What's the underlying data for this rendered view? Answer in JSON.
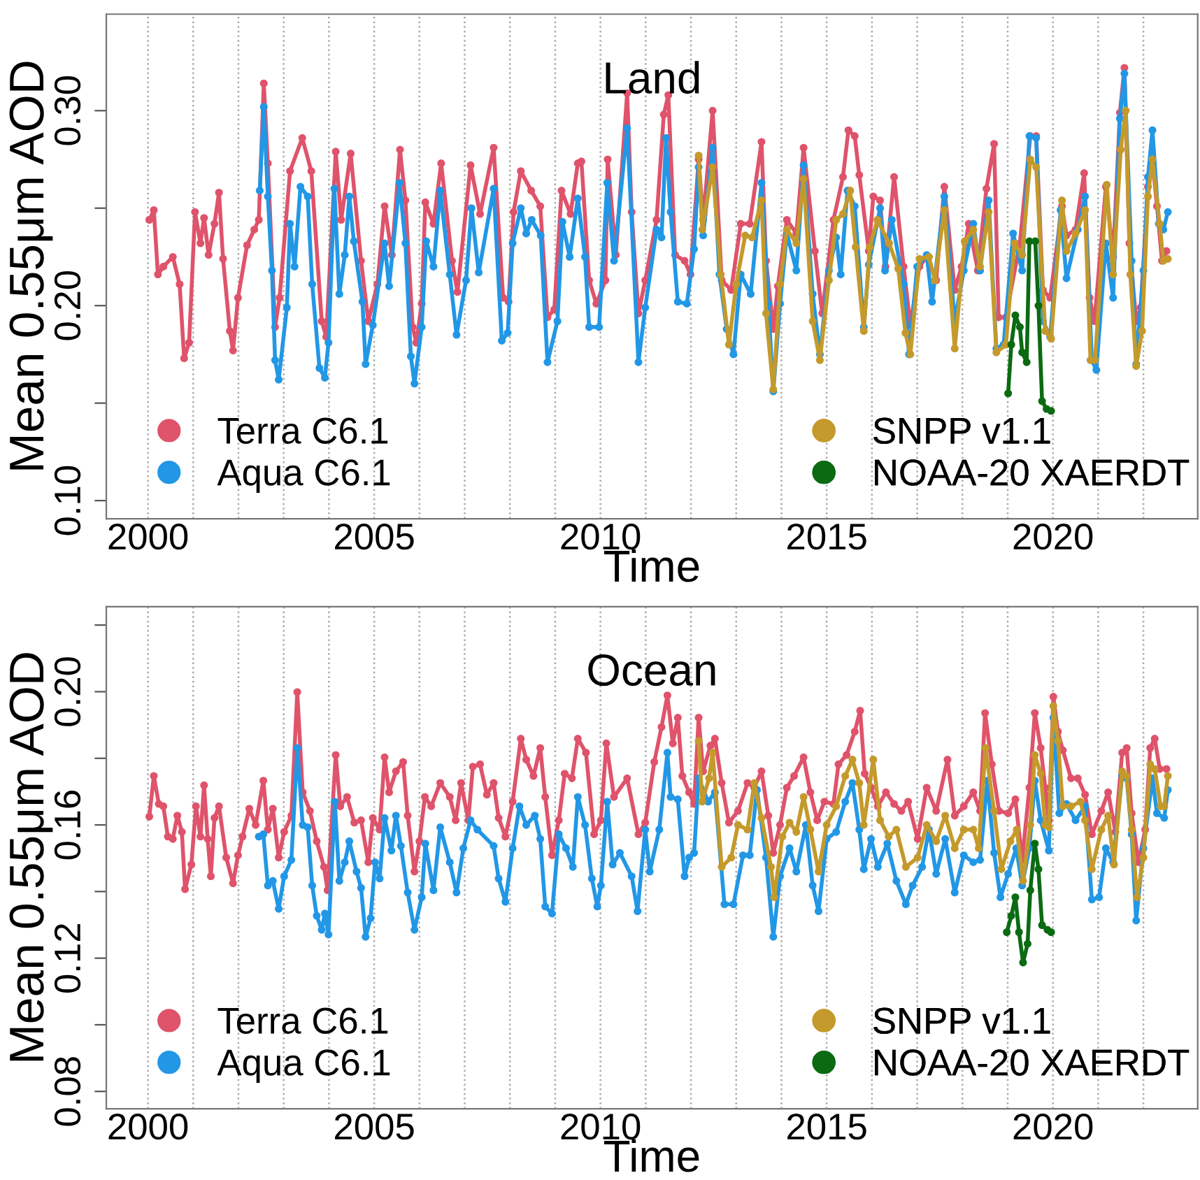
{
  "chart_data": [
    {
      "type": "line",
      "title": "Land",
      "xlabel": "Time",
      "ylabel": "Mean 0.55μm AOD",
      "xlim": [
        1999.08,
        2023.2
      ],
      "ylim": [
        0.0907,
        0.3495
      ],
      "xticks": [
        2000,
        {
          "value": 2001,
          "label": null
        },
        {
          "value": 2002,
          "label": null
        },
        {
          "value": 2003,
          "label": null
        },
        {
          "value": 2004,
          "label": null
        },
        2005,
        {
          "value": 2006,
          "label": null
        },
        {
          "value": 2007,
          "label": null
        },
        {
          "value": 2008,
          "label": null
        },
        {
          "value": 2009,
          "label": null
        },
        2010,
        {
          "value": 2011,
          "label": null
        },
        {
          "value": 2012,
          "label": null
        },
        {
          "value": 2013,
          "label": null
        },
        {
          "value": 2014,
          "label": null
        },
        2015,
        {
          "value": 2016,
          "label": null
        },
        {
          "value": 2017,
          "label": null
        },
        {
          "value": 2018,
          "label": null
        },
        {
          "value": 2019,
          "label": null
        },
        2020,
        {
          "value": 2021,
          "label": null
        },
        {
          "value": 2022,
          "label": null
        }
      ],
      "yticks": [
        {
          "value": 0.1,
          "label": "0.10"
        },
        {
          "value": 0.15,
          "label": null
        },
        {
          "value": 0.2,
          "label": "0.20"
        },
        {
          "value": 0.25,
          "label": null
        },
        {
          "value": 0.3,
          "label": "0.30"
        }
      ],
      "grid": "x",
      "legend": "bottom",
      "marker": "circle",
      "line_style": "solid",
      "series": [
        {
          "name": "Terra C6.1",
          "color": "#df536b",
          "x": [
            2000.03,
            2000.13,
            2000.22,
            2000.34,
            2000.55,
            2000.7,
            2000.8,
            2000.91,
            2001.04,
            2001.16,
            2001.24,
            2001.34,
            2001.47,
            2001.57,
            2001.66,
            2001.81,
            2001.88,
            2001.99,
            2002.19,
            2002.35,
            2002.45,
            2002.56,
            2002.65,
            2002.81,
            2002.91,
            2003.14,
            2003.41,
            2003.61,
            2003.84,
            2003.94,
            2004.15,
            2004.27,
            2004.48,
            2004.71,
            2004.87,
            2005.07,
            2005.23,
            2005.39,
            2005.57,
            2005.69,
            2005.85,
            2005.93,
            2006.05,
            2006.13,
            2006.31,
            2006.48,
            2006.72,
            2006.84,
            2007.13,
            2007.34,
            2007.64,
            2007.85,
            2007.97,
            2008.08,
            2008.24,
            2008.47,
            2008.67,
            2008.83,
            2008.98,
            2009.14,
            2009.34,
            2009.5,
            2009.58,
            2009.75,
            2009.91,
            2010.11,
            2010.16,
            2010.34,
            2010.59,
            2010.69,
            2010.84,
            2010.99,
            2011.24,
            2011.4,
            2011.5,
            2011.65,
            2011.86,
            2011.99,
            2012.17,
            2012.27,
            2012.48,
            2012.68,
            2012.89,
            2013.1,
            2013.3,
            2013.56,
            2013.66,
            2013.82,
            2013.92,
            2014.12,
            2014.33,
            2014.49,
            2014.74,
            2014.9,
            2015.15,
            2015.36,
            2015.48,
            2015.62,
            2015.72,
            2015.93,
            2016.03,
            2016.18,
            2016.3,
            2016.49,
            2016.7,
            2016.85,
            2017.05,
            2017.21,
            2017.42,
            2017.6,
            2017.83,
            2017.98,
            2018.14,
            2018.34,
            2018.53,
            2018.7,
            2018.8,
            2018.96,
            2019.27,
            2019.5,
            2019.63,
            2019.78,
            2019.94,
            2020.2,
            2020.3,
            2020.5,
            2020.69,
            2020.81,
            2020.92,
            2021.17,
            2021.33,
            2021.48,
            2021.58,
            2021.69,
            2021.84,
            2021.94,
            2022.1,
            2022.2,
            2022.3,
            2022.41,
            2022.51
          ],
          "values": [
            0.244,
            0.249,
            0.216,
            0.22,
            0.225,
            0.211,
            0.173,
            0.181,
            0.248,
            0.232,
            0.245,
            0.226,
            0.242,
            0.258,
            0.224,
            0.187,
            0.177,
            0.204,
            0.231,
            0.239,
            0.244,
            0.314,
            0.273,
            0.189,
            0.204,
            0.269,
            0.286,
            0.269,
            0.192,
            0.184,
            0.279,
            0.244,
            0.278,
            0.223,
            0.192,
            0.211,
            0.251,
            0.226,
            0.28,
            0.254,
            0.189,
            0.181,
            0.201,
            0.253,
            0.242,
            0.273,
            0.223,
            0.207,
            0.272,
            0.247,
            0.281,
            0.204,
            0.202,
            0.248,
            0.269,
            0.259,
            0.251,
            0.194,
            0.198,
            0.259,
            0.247,
            0.273,
            0.274,
            0.213,
            0.201,
            0.213,
            0.275,
            0.226,
            0.309,
            0.248,
            0.196,
            0.213,
            0.244,
            0.298,
            0.308,
            0.226,
            0.223,
            0.216,
            0.275,
            0.244,
            0.3,
            0.213,
            0.208,
            0.242,
            0.242,
            0.284,
            0.223,
            0.188,
            0.21,
            0.244,
            0.237,
            0.281,
            0.228,
            0.196,
            0.244,
            0.266,
            0.29,
            0.287,
            0.267,
            0.228,
            0.256,
            0.254,
            0.22,
            0.266,
            0.22,
            0.19,
            0.22,
            0.225,
            0.213,
            0.261,
            0.208,
            0.22,
            0.242,
            0.218,
            0.26,
            0.283,
            0.194,
            0.194,
            0.232,
            0.287,
            0.287,
            0.208,
            0.204,
            0.251,
            0.236,
            0.239,
            0.268,
            0.204,
            0.192,
            0.261,
            0.225,
            0.299,
            0.322,
            0.232,
            0.192,
            0.199,
            0.261,
            0.274,
            0.251,
            0.223,
            0.228
          ]
        },
        {
          "name": "Aqua C6.1",
          "color": "#2297e6",
          "x": [
            2002.47,
            2002.56,
            2002.65,
            2002.74,
            2002.81,
            2002.89,
            2003.07,
            2003.14,
            2003.24,
            2003.37,
            2003.53,
            2003.63,
            2003.79,
            2003.91,
            2003.99,
            2004.12,
            2004.23,
            2004.35,
            2004.45,
            2004.55,
            2004.74,
            2004.81,
            2004.97,
            2005.23,
            2005.33,
            2005.56,
            2005.69,
            2005.81,
            2005.89,
            2006.05,
            2006.15,
            2006.31,
            2006.46,
            2006.67,
            2006.82,
            2007.03,
            2007.15,
            2007.31,
            2007.64,
            2007.82,
            2007.95,
            2008.06,
            2008.24,
            2008.36,
            2008.48,
            2008.68,
            2008.83,
            2009.05,
            2009.16,
            2009.32,
            2009.5,
            2009.66,
            2009.75,
            2009.97,
            2010.15,
            2010.3,
            2010.59,
            2010.84,
            2010.99,
            2011.24,
            2011.35,
            2011.45,
            2011.55,
            2011.71,
            2011.91,
            2012.07,
            2012.17,
            2012.27,
            2012.48,
            2012.63,
            2012.79,
            2012.94,
            2013.1,
            2013.32,
            2013.56,
            2013.71,
            2013.82,
            2013.97,
            2014.12,
            2014.33,
            2014.49,
            2014.69,
            2014.85,
            2015.05,
            2015.21,
            2015.31,
            2015.46,
            2015.62,
            2015.82,
            2015.93,
            2016.18,
            2016.29,
            2016.44,
            2016.7,
            2016.82,
            2017.0,
            2017.21,
            2017.33,
            2017.6,
            2017.83,
            2018.03,
            2018.24,
            2018.39,
            2018.58,
            2018.75,
            2018.91,
            2019.12,
            2019.32,
            2019.48,
            2019.63,
            2019.78,
            2019.94,
            2020.17,
            2020.3,
            2020.55,
            2020.71,
            2020.86,
            2020.96,
            2021.17,
            2021.33,
            2021.48,
            2021.58,
            2021.74,
            2021.84,
            2022.0,
            2022.1,
            2022.2,
            2022.34,
            2022.44,
            2022.54
          ],
          "values": [
            0.259,
            0.302,
            0.256,
            0.218,
            0.172,
            0.162,
            0.199,
            0.242,
            0.22,
            0.261,
            0.256,
            0.211,
            0.168,
            0.163,
            0.181,
            0.26,
            0.206,
            0.226,
            0.256,
            0.233,
            0.202,
            0.17,
            0.19,
            0.232,
            0.21,
            0.263,
            0.232,
            0.174,
            0.16,
            0.189,
            0.233,
            0.22,
            0.259,
            0.216,
            0.185,
            0.213,
            0.25,
            0.217,
            0.26,
            0.182,
            0.186,
            0.232,
            0.25,
            0.237,
            0.244,
            0.236,
            0.171,
            0.192,
            0.243,
            0.225,
            0.255,
            0.225,
            0.189,
            0.189,
            0.263,
            0.223,
            0.291,
            0.171,
            0.199,
            0.239,
            0.235,
            0.286,
            0.248,
            0.202,
            0.201,
            0.229,
            0.271,
            0.236,
            0.281,
            0.216,
            0.188,
            0.175,
            0.216,
            0.206,
            0.263,
            0.201,
            0.156,
            0.201,
            0.237,
            0.218,
            0.272,
            0.206,
            0.175,
            0.218,
            0.235,
            0.216,
            0.259,
            0.251,
            0.189,
            0.221,
            0.25,
            0.218,
            0.244,
            0.211,
            0.175,
            0.22,
            0.226,
            0.202,
            0.256,
            0.192,
            0.218,
            0.242,
            0.218,
            0.254,
            0.178,
            0.18,
            0.237,
            0.218,
            0.287,
            0.286,
            0.192,
            0.184,
            0.249,
            0.214,
            0.239,
            0.256,
            0.172,
            0.167,
            0.232,
            0.204,
            0.296,
            0.319,
            0.223,
            0.17,
            0.218,
            0.266,
            0.29,
            0.242,
            0.239,
            0.248
          ]
        },
        {
          "name": "SNPP v1.1",
          "color": "#c49a2c",
          "x": [
            2012.17,
            2012.25,
            2012.48,
            2012.66,
            2012.84,
            2013.0,
            2013.2,
            2013.35,
            2013.56,
            2013.66,
            2013.82,
            2013.97,
            2014.12,
            2014.33,
            2014.49,
            2014.69,
            2014.85,
            2015.05,
            2015.21,
            2015.36,
            2015.52,
            2015.64,
            2015.82,
            2015.95,
            2016.12,
            2016.38,
            2016.58,
            2016.74,
            2016.85,
            2017.05,
            2017.26,
            2017.39,
            2017.6,
            2017.83,
            2018.05,
            2018.24,
            2018.39,
            2018.58,
            2018.75,
            2018.96,
            2019.15,
            2019.32,
            2019.5,
            2019.63,
            2019.83,
            2019.96,
            2020.2,
            2020.3,
            2020.5,
            2020.71,
            2020.83,
            2020.93,
            2021.19,
            2021.33,
            2021.5,
            2021.61,
            2021.71,
            2021.84,
            2021.97,
            2022.1,
            2022.2,
            2022.36,
            2022.44,
            2022.54
          ],
          "values": [
            0.277,
            0.239,
            0.271,
            0.216,
            0.18,
            0.211,
            0.236,
            0.235,
            0.254,
            0.196,
            0.157,
            0.211,
            0.239,
            0.232,
            0.265,
            0.192,
            0.172,
            0.213,
            0.244,
            0.247,
            0.259,
            0.23,
            0.187,
            0.23,
            0.244,
            0.232,
            0.219,
            0.186,
            0.175,
            0.224,
            0.225,
            0.213,
            0.249,
            0.178,
            0.233,
            0.239,
            0.22,
            0.248,
            0.176,
            0.18,
            0.232,
            0.226,
            0.275,
            0.271,
            0.187,
            0.183,
            0.254,
            0.228,
            0.237,
            0.249,
            0.172,
            0.172,
            0.262,
            0.216,
            0.28,
            0.3,
            0.216,
            0.169,
            0.187,
            0.256,
            0.275,
            0.242,
            0.223,
            0.224
          ]
        },
        {
          "name": "NOAA-20 XAERDT",
          "color": "#0b6b12",
          "x": [
            2019.01,
            2019.08,
            2019.17,
            2019.27,
            2019.32,
            2019.42,
            2019.48,
            2019.61,
            2019.68,
            2019.76,
            2019.86,
            2019.96
          ],
          "values": [
            0.155,
            0.18,
            0.195,
            0.189,
            0.176,
            0.171,
            0.233,
            0.233,
            0.2,
            0.151,
            0.147,
            0.146
          ]
        }
      ]
    },
    {
      "type": "line",
      "title": "Ocean",
      "xlabel": "Time",
      "ylabel": "Mean 0.55μm AOD",
      "xlim": [
        1999.08,
        2023.2
      ],
      "ylim": [
        0.0748,
        0.2255
      ],
      "xticks": [
        2000,
        {
          "value": 2001,
          "label": null
        },
        {
          "value": 2002,
          "label": null
        },
        {
          "value": 2003,
          "label": null
        },
        {
          "value": 2004,
          "label": null
        },
        2005,
        {
          "value": 2006,
          "label": null
        },
        {
          "value": 2007,
          "label": null
        },
        {
          "value": 2008,
          "label": null
        },
        {
          "value": 2009,
          "label": null
        },
        2010,
        {
          "value": 2011,
          "label": null
        },
        {
          "value": 2012,
          "label": null
        },
        {
          "value": 2013,
          "label": null
        },
        {
          "value": 2014,
          "label": null
        },
        2015,
        {
          "value": 2016,
          "label": null
        },
        {
          "value": 2017,
          "label": null
        },
        {
          "value": 2018,
          "label": null
        },
        {
          "value": 2019,
          "label": null
        },
        2020,
        {
          "value": 2021,
          "label": null
        },
        {
          "value": 2022,
          "label": null
        }
      ],
      "yticks": [
        0.08,
        {
          "value": 0.1,
          "label": null
        },
        0.12,
        {
          "value": 0.14,
          "label": null
        },
        0.16,
        {
          "value": 0.18,
          "label": null
        },
        {
          "value": 0.2,
          "label": "0.20"
        },
        {
          "value": 0.22,
          "label": null
        }
      ],
      "grid": "x",
      "legend": "bottom",
      "marker": "circle",
      "line_style": "solid",
      "series": [
        {
          "name": "Terra C6.1",
          "color": "#df536b",
          "x": [
            2000.03,
            2000.13,
            2000.24,
            2000.34,
            2000.44,
            2000.55,
            2000.65,
            2000.75,
            2000.82,
            2000.96,
            2001.06,
            2001.16,
            2001.24,
            2001.32,
            2001.39,
            2001.47,
            2001.57,
            2001.73,
            2001.88,
            2001.99,
            2002.09,
            2002.24,
            2002.38,
            2002.55,
            2002.65,
            2002.76,
            2002.89,
            2003.01,
            2003.17,
            2003.3,
            2003.42,
            2003.58,
            2003.73,
            2003.89,
            2003.97,
            2004.15,
            2004.25,
            2004.4,
            2004.56,
            2004.71,
            2004.87,
            2004.97,
            2005.12,
            2005.23,
            2005.33,
            2005.48,
            2005.64,
            2005.74,
            2005.89,
            2006.0,
            2006.12,
            2006.26,
            2006.46,
            2006.67,
            2006.8,
            2006.92,
            2007.08,
            2007.18,
            2007.34,
            2007.49,
            2007.64,
            2007.75,
            2007.9,
            2008.06,
            2008.24,
            2008.36,
            2008.52,
            2008.67,
            2008.78,
            2008.93,
            2009.08,
            2009.21,
            2009.37,
            2009.5,
            2009.68,
            2009.86,
            2010.01,
            2010.13,
            2010.3,
            2010.59,
            2010.84,
            2010.99,
            2011.19,
            2011.35,
            2011.48,
            2011.6,
            2011.71,
            2011.81,
            2011.96,
            2012.07,
            2012.17,
            2012.27,
            2012.43,
            2012.53,
            2012.68,
            2012.84,
            2013.04,
            2013.25,
            2013.4,
            2013.56,
            2013.71,
            2013.82,
            2013.97,
            2014.12,
            2014.28,
            2014.49,
            2014.64,
            2014.79,
            2014.95,
            2015.15,
            2015.26,
            2015.44,
            2015.62,
            2015.74,
            2015.84,
            2015.98,
            2016.13,
            2016.31,
            2016.49,
            2016.65,
            2016.8,
            2017.01,
            2017.21,
            2017.42,
            2017.67,
            2017.83,
            2018.03,
            2018.24,
            2018.39,
            2018.5,
            2018.65,
            2018.81,
            2019.01,
            2019.17,
            2019.32,
            2019.48,
            2019.6,
            2019.73,
            2019.83,
            2019.91,
            2020.01,
            2020.11,
            2020.22,
            2020.4,
            2020.55,
            2020.71,
            2020.86,
            2021.07,
            2021.22,
            2021.38,
            2021.53,
            2021.63,
            2021.74,
            2021.89,
            2022.04,
            2022.15,
            2022.25,
            2022.36,
            2022.51
          ],
          "values": [
            0.1625,
            0.1747,
            0.1663,
            0.1656,
            0.1565,
            0.1558,
            0.1628,
            0.1579,
            0.1407,
            0.1481,
            0.1656,
            0.1565,
            0.1719,
            0.1558,
            0.1446,
            0.1621,
            0.1656,
            0.1502,
            0.1425,
            0.1509,
            0.1565,
            0.1649,
            0.16,
            0.1733,
            0.1586,
            0.1649,
            0.1502,
            0.1579,
            0.1628,
            0.1999,
            0.1698,
            0.1642,
            0.1551,
            0.1474,
            0.1404,
            0.181,
            0.1656,
            0.1684,
            0.1607,
            0.1614,
            0.1488,
            0.1621,
            0.1586,
            0.1803,
            0.1698,
            0.1761,
            0.1789,
            0.1628,
            0.146,
            0.1551,
            0.1684,
            0.1656,
            0.1726,
            0.1684,
            0.1614,
            0.1726,
            0.1614,
            0.1775,
            0.1782,
            0.1691,
            0.1726,
            0.1621,
            0.1565,
            0.167,
            0.1859,
            0.1796,
            0.1747,
            0.1831,
            0.1684,
            0.1509,
            0.1614,
            0.1754,
            0.174,
            0.1859,
            0.1817,
            0.1572,
            0.1614,
            0.1845,
            0.1684,
            0.174,
            0.1572,
            0.1607,
            0.1789,
            0.1894,
            0.1989,
            0.1845,
            0.1922,
            0.1747,
            0.1698,
            0.1663,
            0.1922,
            0.1761,
            0.1838,
            0.1859,
            0.1726,
            0.1607,
            0.1642,
            0.1726,
            0.1712,
            0.1761,
            0.1628,
            0.1516,
            0.16,
            0.1712,
            0.1747,
            0.1803,
            0.1698,
            0.1614,
            0.167,
            0.1663,
            0.1782,
            0.181,
            0.188,
            0.1943,
            0.1754,
            0.1712,
            0.1656,
            0.1698,
            0.1663,
            0.1642,
            0.167,
            0.1558,
            0.1712,
            0.1642,
            0.1796,
            0.1628,
            0.1656,
            0.1698,
            0.1642,
            0.1936,
            0.1782,
            0.1642,
            0.1635,
            0.1677,
            0.1495,
            0.1712,
            0.1936,
            0.1831,
            0.1712,
            0.1614,
            0.1985,
            0.188,
            0.1824,
            0.174,
            0.174,
            0.1691,
            0.1572,
            0.1642,
            0.1698,
            0.1579,
            0.1817,
            0.1831,
            0.1635,
            0.1488,
            0.1586,
            0.1831,
            0.1859,
            0.1768,
            0.1768
          ]
        },
        {
          "name": "Aqua C6.1",
          "color": "#2297e6",
          "x": [
            2002.45,
            2002.55,
            2002.65,
            2002.76,
            2002.89,
            2003.01,
            2003.17,
            2003.3,
            2003.42,
            2003.53,
            2003.63,
            2003.73,
            2003.84,
            2003.91,
            2003.99,
            2004.13,
            2004.23,
            2004.35,
            2004.45,
            2004.61,
            2004.71,
            2004.81,
            2004.92,
            2005.02,
            2005.12,
            2005.23,
            2005.38,
            2005.48,
            2005.59,
            2005.74,
            2005.89,
            2006.05,
            2006.13,
            2006.31,
            2006.46,
            2006.67,
            2006.82,
            2006.97,
            2007.13,
            2007.28,
            2007.64,
            2007.75,
            2007.9,
            2008.06,
            2008.21,
            2008.36,
            2008.55,
            2008.67,
            2008.78,
            2008.93,
            2009.08,
            2009.24,
            2009.39,
            2009.5,
            2009.66,
            2009.81,
            2009.93,
            2010.01,
            2010.15,
            2010.27,
            2010.43,
            2010.69,
            2010.82,
            2010.99,
            2011.09,
            2011.3,
            2011.48,
            2011.55,
            2011.71,
            2011.86,
            2011.96,
            2012.07,
            2012.17,
            2012.38,
            2012.53,
            2012.74,
            2012.94,
            2013.15,
            2013.3,
            2013.46,
            2013.66,
            2013.82,
            2013.97,
            2014.18,
            2014.33,
            2014.54,
            2014.69,
            2014.82,
            2015.0,
            2015.21,
            2015.41,
            2015.57,
            2015.72,
            2015.82,
            2015.98,
            2016.13,
            2016.34,
            2016.54,
            2016.75,
            2016.9,
            2017.11,
            2017.26,
            2017.42,
            2017.62,
            2017.83,
            2018.03,
            2018.24,
            2018.39,
            2018.55,
            2018.7,
            2018.84,
            2019.01,
            2019.19,
            2019.32,
            2019.48,
            2019.6,
            2019.73,
            2019.91,
            2020.01,
            2020.14,
            2020.3,
            2020.5,
            2020.71,
            2020.86,
            2021.02,
            2021.17,
            2021.33,
            2021.53,
            2021.63,
            2021.74,
            2021.84,
            2022.0,
            2022.2,
            2022.3,
            2022.46,
            2022.54
          ],
          "values": [
            0.1565,
            0.1572,
            0.1418,
            0.1432,
            0.1348,
            0.1446,
            0.1495,
            0.1831,
            0.16,
            0.1593,
            0.1418,
            0.1327,
            0.1285,
            0.1334,
            0.1271,
            0.167,
            0.1432,
            0.1488,
            0.1551,
            0.146,
            0.1411,
            0.1264,
            0.132,
            0.1488,
            0.1439,
            0.1621,
            0.1523,
            0.1628,
            0.1537,
            0.1397,
            0.1285,
            0.1383,
            0.1544,
            0.1404,
            0.1593,
            0.1488,
            0.1397,
            0.153,
            0.1614,
            0.1586,
            0.1537,
            0.1439,
            0.1369,
            0.153,
            0.1656,
            0.16,
            0.1628,
            0.1558,
            0.1355,
            0.1334,
            0.1572,
            0.153,
            0.1474,
            0.1684,
            0.16,
            0.1439,
            0.1355,
            0.1418,
            0.167,
            0.1481,
            0.1516,
            0.1446,
            0.1341,
            0.1586,
            0.146,
            0.1586,
            0.1817,
            0.1684,
            0.1677,
            0.1446,
            0.1502,
            0.1516,
            0.174,
            0.167,
            0.1698,
            0.1362,
            0.1362,
            0.1509,
            0.1509,
            0.1705,
            0.1502,
            0.1264,
            0.1446,
            0.153,
            0.146,
            0.16,
            0.1418,
            0.1341,
            0.1558,
            0.1579,
            0.167,
            0.1726,
            0.1586,
            0.1467,
            0.1558,
            0.1474,
            0.1544,
            0.1432,
            0.1362,
            0.1418,
            0.1474,
            0.1586,
            0.1453,
            0.1558,
            0.1397,
            0.1509,
            0.1488,
            0.1495,
            0.1733,
            0.1516,
            0.1383,
            0.1453,
            0.153,
            0.1418,
            0.153,
            0.1733,
            0.1614,
            0.1523,
            0.1922,
            0.1635,
            0.1663,
            0.1614,
            0.1656,
            0.1376,
            0.1383,
            0.153,
            0.1488,
            0.1747,
            0.174,
            0.1572,
            0.1313,
            0.153,
            0.174,
            0.1635,
            0.1621,
            0.1705
          ]
        },
        {
          "name": "SNPP v1.1",
          "color": "#c49a2c",
          "x": [
            2012.17,
            2012.25,
            2012.4,
            2012.48,
            2012.68,
            2012.89,
            2013.04,
            2013.25,
            2013.4,
            2013.56,
            2013.77,
            2013.84,
            2014.02,
            2014.18,
            2014.33,
            2014.49,
            2014.64,
            2014.82,
            2015.0,
            2015.21,
            2015.41,
            2015.57,
            2015.72,
            2015.82,
            2016.03,
            2016.18,
            2016.37,
            2016.54,
            2016.75,
            2017.01,
            2017.21,
            2017.42,
            2017.62,
            2017.83,
            2018.03,
            2018.24,
            2018.36,
            2018.51,
            2018.7,
            2018.86,
            2019.06,
            2019.2,
            2019.34,
            2019.5,
            2019.6,
            2019.73,
            2019.83,
            2019.91,
            2020.01,
            2020.11,
            2020.22,
            2020.4,
            2020.61,
            2020.71,
            2020.86,
            2021.07,
            2021.22,
            2021.35,
            2021.53,
            2021.63,
            2021.74,
            2021.86,
            2022.0,
            2022.15,
            2022.25,
            2022.38,
            2022.46,
            2022.54
          ],
          "values": [
            0.1852,
            0.167,
            0.174,
            0.1817,
            0.1474,
            0.1502,
            0.16,
            0.1586,
            0.1726,
            0.1621,
            0.1474,
            0.1383,
            0.1565,
            0.1607,
            0.1579,
            0.1684,
            0.1586,
            0.146,
            0.16,
            0.1656,
            0.1747,
            0.1796,
            0.1726,
            0.16,
            0.1796,
            0.1614,
            0.1565,
            0.1586,
            0.1474,
            0.1502,
            0.16,
            0.1551,
            0.1628,
            0.153,
            0.1586,
            0.1586,
            0.153,
            0.1831,
            0.1642,
            0.1467,
            0.1551,
            0.1586,
            0.1432,
            0.16,
            0.181,
            0.1754,
            0.16,
            0.1593,
            0.1957,
            0.1852,
            0.1656,
            0.1656,
            0.167,
            0.1614,
            0.1467,
            0.1586,
            0.1628,
            0.1481,
            0.1761,
            0.1747,
            0.1586,
            0.1383,
            0.1502,
            0.1782,
            0.1768,
            0.1656,
            0.1656,
            0.1747
          ]
        },
        {
          "name": "NOAA-20 XAERDT",
          "color": "#0b6b12",
          "x": [
            2018.98,
            2019.08,
            2019.17,
            2019.25,
            2019.34,
            2019.44,
            2019.5,
            2019.6,
            2019.68,
            2019.76,
            2019.88,
            2019.96
          ],
          "values": [
            0.1278,
            0.1327,
            0.1383,
            0.1278,
            0.1187,
            0.1243,
            0.1404,
            0.1544,
            0.1467,
            0.1299,
            0.1285,
            0.1278
          ]
        }
      ]
    }
  ]
}
